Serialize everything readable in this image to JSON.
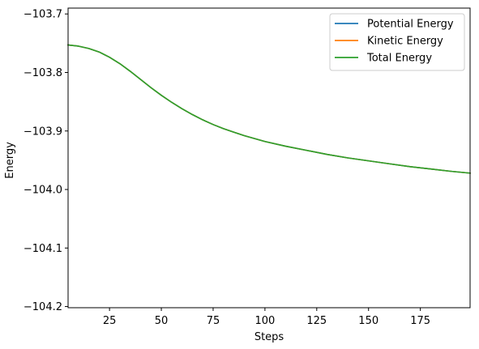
{
  "chart_data": {
    "type": "line",
    "title": "",
    "xlabel": "Steps",
    "ylabel": "Energy",
    "xlim": [
      5,
      199
    ],
    "ylim": [
      -104.202,
      -103.69
    ],
    "x_ticks": [
      25,
      50,
      75,
      100,
      125,
      150,
      175
    ],
    "x_tick_labels": [
      "25",
      "50",
      "75",
      "100",
      "125",
      "150",
      "175"
    ],
    "y_ticks": [
      -103.7,
      -103.8,
      -103.9,
      -104.0,
      -104.1,
      -104.2
    ],
    "y_tick_labels": [
      "−103.7",
      "−103.8",
      "−103.9",
      "−104.0",
      "−104.1",
      "−104.2"
    ],
    "grid": false,
    "legend": "top-right",
    "series": [
      {
        "name": "Potential Energy",
        "color": "#1f77b4",
        "x": [
          5,
          10,
          15,
          20,
          25,
          30,
          35,
          40,
          45,
          50,
          55,
          60,
          65,
          70,
          75,
          80,
          85,
          90,
          95,
          100,
          110,
          120,
          130,
          140,
          150,
          160,
          170,
          180,
          190,
          199
        ],
        "y": [
          -103.753,
          -103.755,
          -103.759,
          -103.765,
          -103.774,
          -103.785,
          -103.798,
          -103.812,
          -103.826,
          -103.839,
          -103.851,
          -103.862,
          -103.872,
          -103.881,
          -103.889,
          -103.896,
          -103.902,
          -103.908,
          -103.913,
          -103.918,
          -103.926,
          -103.933,
          -103.94,
          -103.946,
          -103.951,
          -103.956,
          -103.961,
          -103.965,
          -103.969,
          -103.972
        ]
      },
      {
        "name": "Kinetic Energy",
        "color": "#ff7f0e",
        "x": [
          5,
          10,
          15,
          20,
          25,
          30,
          35,
          40,
          45,
          50,
          55,
          60,
          65,
          70,
          75,
          80,
          85,
          90,
          95,
          100,
          110,
          120,
          130,
          140,
          150,
          160,
          170,
          180,
          190,
          199
        ],
        "y": [
          -103.753,
          -103.755,
          -103.759,
          -103.765,
          -103.774,
          -103.785,
          -103.798,
          -103.812,
          -103.826,
          -103.839,
          -103.851,
          -103.862,
          -103.872,
          -103.881,
          -103.889,
          -103.896,
          -103.902,
          -103.908,
          -103.913,
          -103.918,
          -103.926,
          -103.933,
          -103.94,
          -103.946,
          -103.951,
          -103.956,
          -103.961,
          -103.965,
          -103.969,
          -103.972
        ]
      },
      {
        "name": "Total Energy",
        "color": "#2ca02c",
        "x": [
          5,
          10,
          15,
          20,
          25,
          30,
          35,
          40,
          45,
          50,
          55,
          60,
          65,
          70,
          75,
          80,
          85,
          90,
          95,
          100,
          110,
          120,
          130,
          140,
          150,
          160,
          170,
          180,
          190,
          199
        ],
        "y": [
          -103.753,
          -103.755,
          -103.759,
          -103.765,
          -103.774,
          -103.785,
          -103.798,
          -103.812,
          -103.826,
          -103.839,
          -103.851,
          -103.862,
          -103.872,
          -103.881,
          -103.889,
          -103.896,
          -103.902,
          -103.908,
          -103.913,
          -103.918,
          -103.926,
          -103.933,
          -103.94,
          -103.946,
          -103.951,
          -103.956,
          -103.961,
          -103.965,
          -103.969,
          -103.972
        ]
      }
    ]
  }
}
